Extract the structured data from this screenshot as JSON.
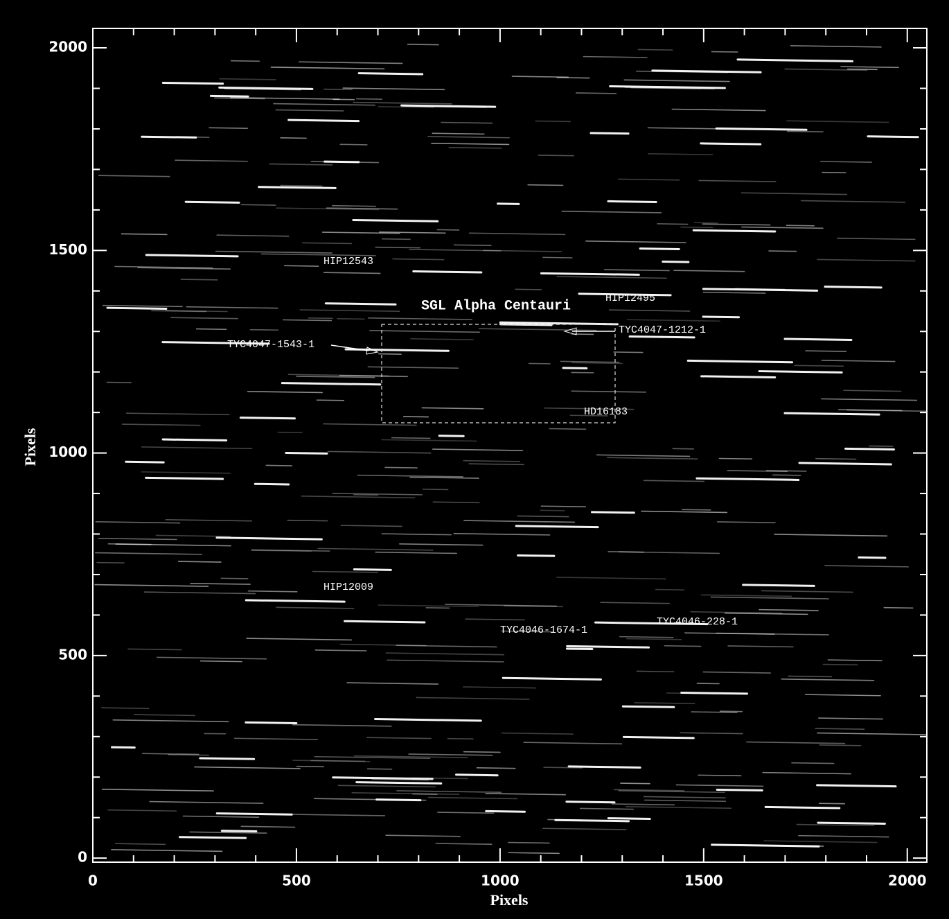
{
  "chart_data": {
    "type": "image",
    "title": "SGL Alpha Centauri",
    "xlabel": "Pixels",
    "ylabel": "Pixels",
    "xlim": [
      0,
      2048
    ],
    "ylim": [
      -10,
      2048
    ],
    "xticks": [
      0,
      500,
      1000,
      1500,
      2000
    ],
    "yticks": [
      0,
      500,
      1000,
      1500,
      2000
    ],
    "annotations": [
      "HIP12543",
      "HIP12495",
      "TYC4047-1212-1",
      "TYC4047-1543-1",
      "HD16183",
      "HIP12009",
      "TYC4046-1674-1",
      "TYC4046-228-1"
    ]
  }
}
